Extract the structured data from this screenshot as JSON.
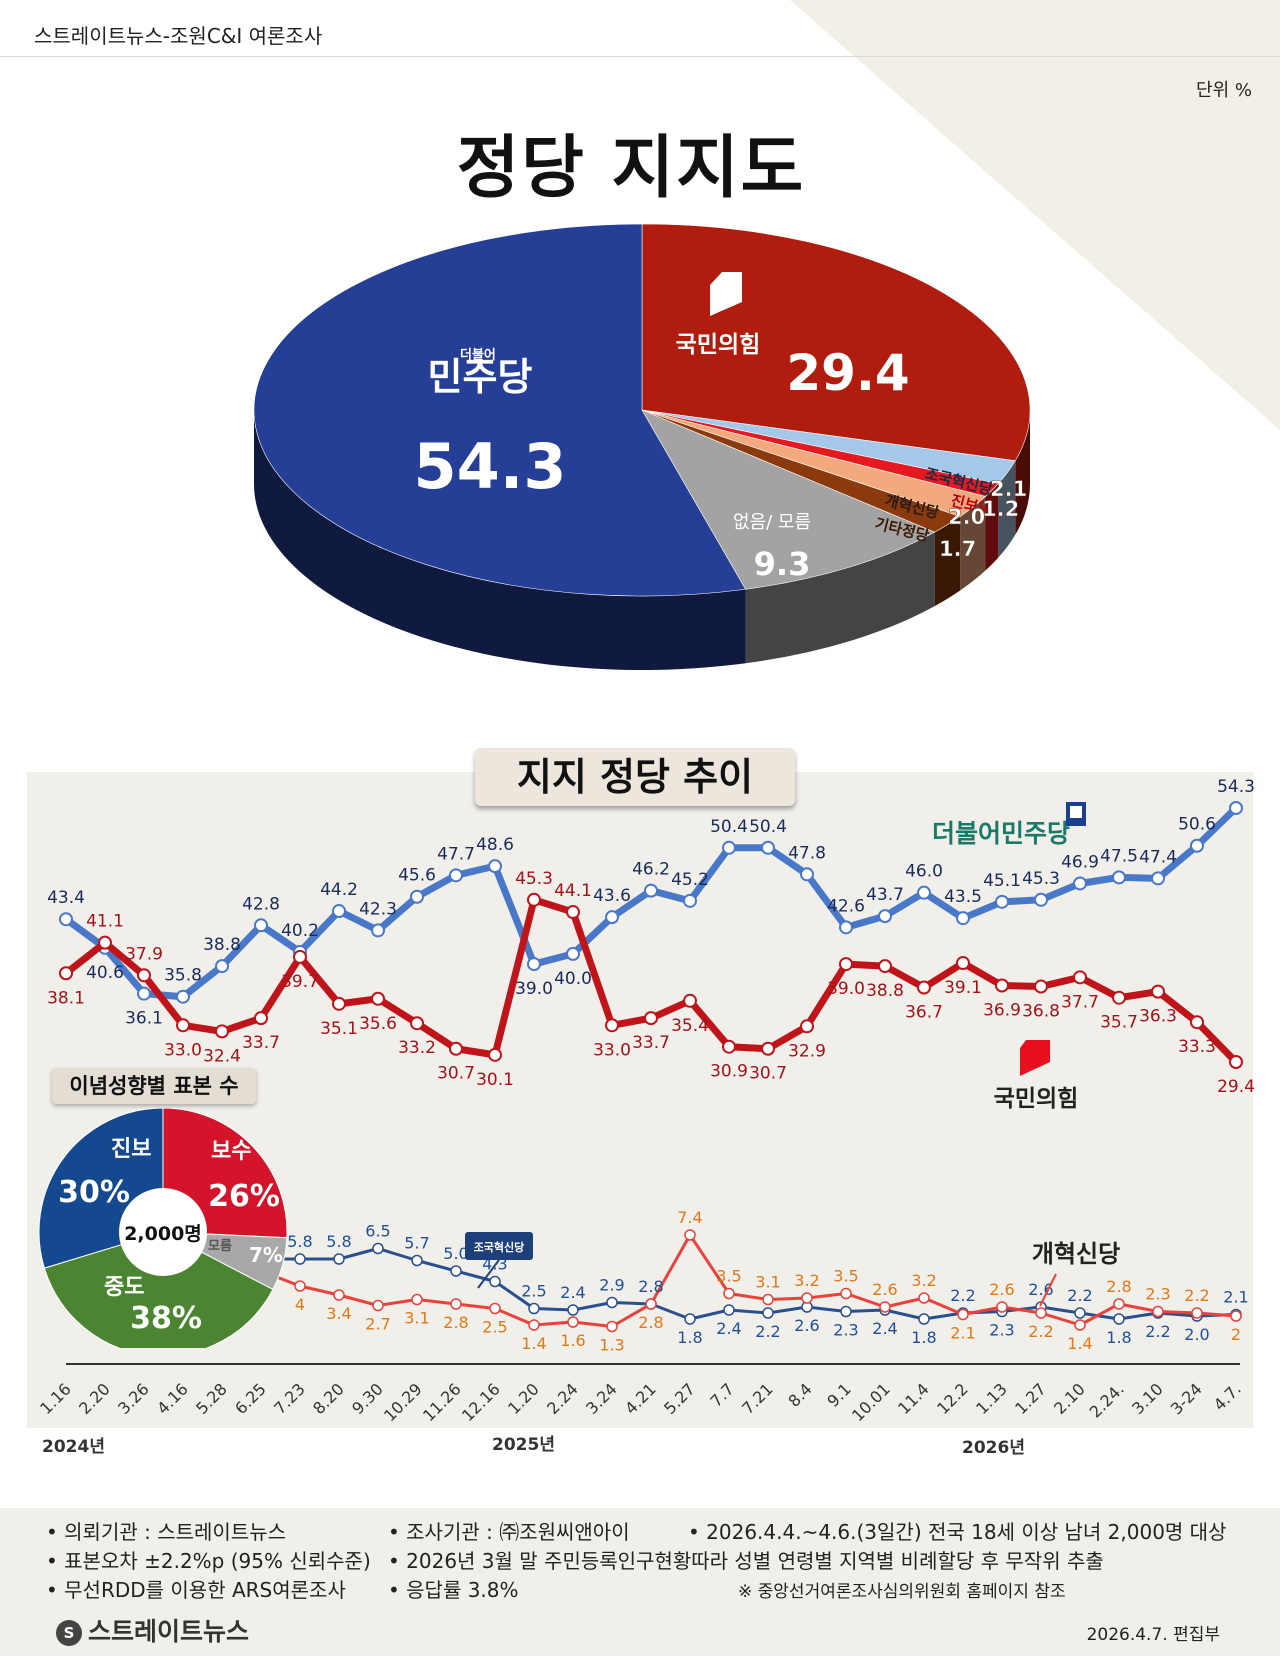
{
  "header": {
    "title": "스트레이트뉴스-조원C&I 여론조사"
  },
  "unit": "단위 %",
  "main_title": "정당 지지도",
  "trend_title": "지지 정당 추이",
  "ideology_title": "이념성향별 표본 수",
  "years": [
    "2024년",
    "2025년",
    "2026년"
  ],
  "trend_labels": {
    "dem": "더불어민주당",
    "ppp": "국민의힘",
    "rebuild": "조국혁신당",
    "reform": "개혁신당"
  },
  "colors": {
    "dem": "#4a78c8",
    "ppp": "#c0141b",
    "rebuild": "#2a4f8f",
    "reform": "#e8423a",
    "none": "#a3a3a3",
    "bg": "#f1efea"
  },
  "chart_data": [
    {
      "type": "pie",
      "title": "정당 지지도",
      "slices": [
        {
          "label": "더불어민주당",
          "label_small": "더불어",
          "label_main": "민주당",
          "value": 54.3,
          "value_text": "54.3",
          "color": "#263f96"
        },
        {
          "label": "국민의힘",
          "value": 29.4,
          "value_text": "29.4",
          "color": "#b01c0e"
        },
        {
          "label": "조국혁신당",
          "value": 2.1,
          "value_text": "2.1",
          "color": "#a6c8e8"
        },
        {
          "label": "진보당",
          "value": 1.2,
          "value_text": "1.2",
          "color": "#e51a21"
        },
        {
          "label": "개혁신당",
          "value": 2.0,
          "value_text": "2.0",
          "color": "#f2a97e"
        },
        {
          "label": "기타정당",
          "value": 1.7,
          "value_text": "1.7",
          "color": "#8b3a0e"
        },
        {
          "label": "없음/ 모름",
          "value": 9.3,
          "value_text": "9.3",
          "color": "#a3a3a3"
        }
      ]
    },
    {
      "type": "line",
      "title": "지지 정당 추이",
      "categories": [
        "1.16",
        "2.20",
        "3.26",
        "4.16",
        "5.28",
        "6.25",
        "7.23",
        "8.20",
        "9.30",
        "10.29",
        "11.26",
        "12.16",
        "1.20",
        "2.24",
        "3.24",
        "4.21",
        "5.27",
        "7.7",
        "7.21",
        "8.4",
        "9.1",
        "10.01",
        "11.4",
        "12.2",
        "1.13",
        "1.27",
        "2.10",
        "2.24.",
        "3.10",
        "3-24",
        "4.7."
      ],
      "series": [
        {
          "name": "더불어민주당",
          "values": [
            43.4,
            40.6,
            36.1,
            35.8,
            38.8,
            42.8,
            40.2,
            44.2,
            42.3,
            45.6,
            47.7,
            48.6,
            39.0,
            40.0,
            43.6,
            46.2,
            45.2,
            50.4,
            50.4,
            47.8,
            42.6,
            43.7,
            46.0,
            43.5,
            45.1,
            45.3,
            46.9,
            47.5,
            47.4,
            50.6,
            54.3
          ]
        },
        {
          "name": "국민의힘",
          "values": [
            38.1,
            41.1,
            37.9,
            33.0,
            32.4,
            33.7,
            39.7,
            35.1,
            35.6,
            33.2,
            30.7,
            30.1,
            45.3,
            44.1,
            33.0,
            33.7,
            35.4,
            30.9,
            30.7,
            32.9,
            39.0,
            38.8,
            36.7,
            39.1,
            36.9,
            36.8,
            37.7,
            35.7,
            36.3,
            33.3,
            29.4
          ]
        }
      ],
      "ylim": [
        28,
        56
      ]
    },
    {
      "type": "line",
      "categories": [
        "6.25",
        "7.23",
        "8.20",
        "9.30",
        "10.29",
        "11.26",
        "12.16",
        "1.20",
        "2.24",
        "3.24",
        "4.21",
        "5.27",
        "7.7",
        "7.21",
        "8.4",
        "9.1",
        "10.01",
        "11.4",
        "12.2",
        "1.13",
        "1.27",
        "2.10",
        "2.24.",
        "3.10",
        "3-24",
        "4.7."
      ],
      "series": [
        {
          "name": "조국혁신당",
          "values": [
            5.8,
            5.8,
            5.8,
            6.5,
            5.7,
            5.0,
            4.3,
            2.5,
            2.4,
            2.9,
            2.8,
            1.8,
            2.4,
            2.2,
            2.6,
            2.3,
            2.4,
            1.8,
            2.2,
            2.3,
            2.6,
            2.2,
            1.8,
            2.2,
            2.0,
            2.1
          ]
        },
        {
          "name": "개혁신당",
          "values": [
            5,
            4.0,
            3.4,
            2.7,
            3.1,
            2.8,
            2.5,
            1.4,
            1.6,
            1.3,
            2.8,
            7.4,
            3.5,
            3.1,
            3.2,
            3.5,
            2.6,
            3.2,
            2.1,
            2.6,
            2.2,
            1.4,
            2.8,
            2.3,
            2.2,
            2.0
          ]
        }
      ],
      "ylim": [
        0,
        10
      ]
    },
    {
      "type": "pie",
      "title": "이념성향별 표본 수",
      "center_text": "2,000명",
      "slices": [
        {
          "label": "보수",
          "value": 26,
          "value_text": "26%",
          "color": "#d3142b"
        },
        {
          "label": "모름",
          "value": 7,
          "value_text": "7%",
          "color": "#a8a8a8"
        },
        {
          "label": "중도",
          "value": 38,
          "value_text": "38%",
          "color": "#4c8532"
        },
        {
          "label": "진보",
          "value": 30,
          "value_text": "30%",
          "color": "#14498f"
        }
      ]
    }
  ],
  "footer": {
    "left": [
      "• 의뢰기관 : 스트레이트뉴스",
      "• 표본오차 ±2.2%p (95% 신뢰수준)",
      "• 무선RDD를 이용한 ARS여론조사"
    ],
    "mid": [
      "• 조사기관 : ㈜조원씨앤아이",
      "• 2026년 3월 말 주민등록인구현황따라 성별 연령별 지역별 비례할당 후 무작위 추출",
      "• 응답률 3.8%"
    ],
    "right": "• 2026.4.4.~4.6.(3일간) 전국 18세 이상 남녀 2,000명 대상",
    "note": "※ 중앙선거여론조사심의위원회 홈페이지 참조",
    "logo": "스트레이트뉴스",
    "logo_mark": "S",
    "publisher": "2026.4.7.  편집부"
  }
}
